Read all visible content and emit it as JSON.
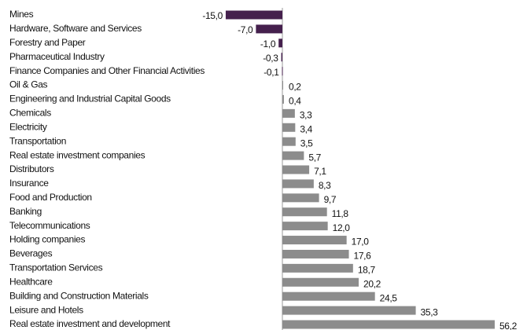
{
  "chart_data": {
    "type": "hbar",
    "categories": [
      "Mines",
      "Hardware, Software and Services",
      "Forestry and Paper",
      "Pharmaceutical Industry",
      "Finance Companies and Other Financial Activities",
      "Oil & Gas",
      "Engineering and Industrial Capital Goods",
      "Chemicals",
      "Electricity",
      "Transportation",
      "Real estate investment companies",
      "Distributors",
      "Insurance",
      "Food and Production",
      "Banking",
      "Telecommunications",
      "Holding companies",
      "Beverages",
      "Transportation Services",
      "Healthcare",
      "Building and Construction Materials",
      "Leisure and Hotels",
      "Real estate investment and development"
    ],
    "values": [
      -15.0,
      -7.0,
      -1.0,
      -0.3,
      -0.1,
      0.2,
      0.4,
      3.3,
      3.4,
      3.5,
      5.7,
      7.1,
      8.3,
      9.7,
      11.8,
      12.0,
      17.0,
      17.6,
      18.7,
      20.2,
      24.5,
      35.3,
      56.2
    ],
    "value_labels": [
      "-15,0",
      "-7,0",
      "-1,0",
      "-0,3",
      "-0,1",
      "0,2",
      "0,4",
      "3,3",
      "3,4",
      "3,5",
      "5,7",
      "7,1",
      "8,3",
      "9,7",
      "11,8",
      "12,0",
      "17,0",
      "17,6",
      "18,7",
      "20,2",
      "24,5",
      "35,3",
      "56,2"
    ],
    "color": "#8c8c8c",
    "negative_color": "#45204d"
  }
}
